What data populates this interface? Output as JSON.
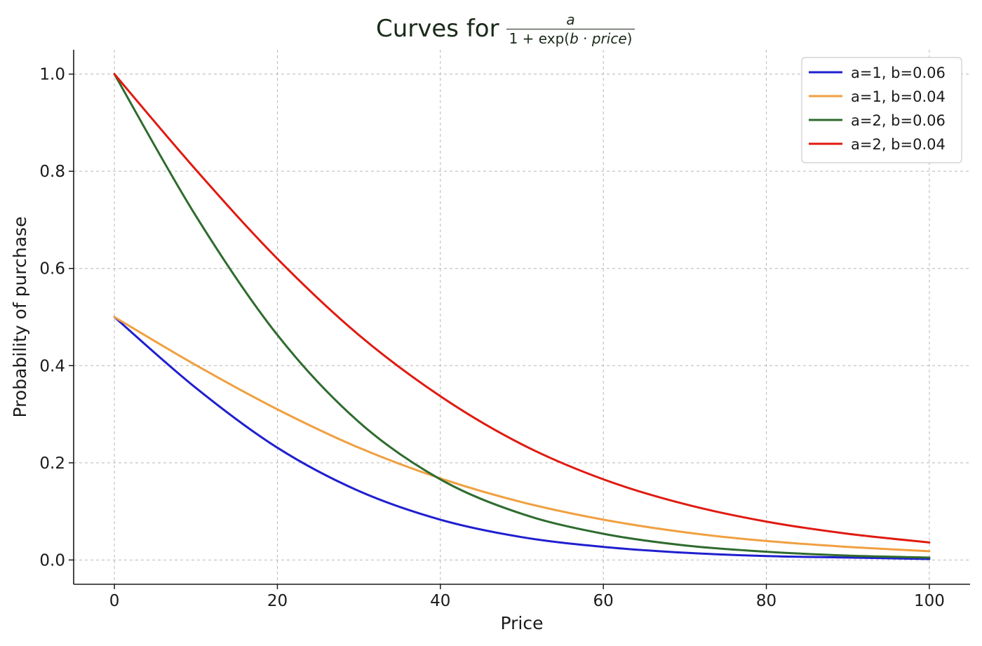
{
  "chart_data": {
    "type": "line",
    "title": "Curves for",
    "formula": {
      "numerator": "a",
      "denominator_prefix": "1 + exp(",
      "denominator_var1": "b",
      "denominator_dot": " · ",
      "denominator_var2": "price",
      "denominator_suffix": ")"
    },
    "xlabel": "Price",
    "ylabel": "Probability of purchase",
    "xlim": [
      -5,
      105
    ],
    "ylim": [
      -0.05,
      1.05
    ],
    "xticks": [
      0,
      20,
      40,
      60,
      80,
      100
    ],
    "yticks": [
      0.0,
      0.2,
      0.4,
      0.6,
      0.8,
      1.0
    ],
    "xtick_labels": [
      "0",
      "20",
      "40",
      "60",
      "80",
      "100"
    ],
    "ytick_labels": [
      "0.0",
      "0.2",
      "0.4",
      "0.6",
      "0.8",
      "1.0"
    ],
    "grid": true,
    "legend_position": "top-right",
    "x": [
      0,
      10,
      20,
      30,
      40,
      50,
      60,
      70,
      80,
      90,
      100
    ],
    "series": [
      {
        "name": "a=1, b=0.06",
        "color": "#1f1fd0",
        "values": [
          0.5,
          0.354,
          0.231,
          0.142,
          0.083,
          0.047,
          0.027,
          0.015,
          0.008,
          0.005,
          0.002
        ]
      },
      {
        "name": "a=1, b=0.04",
        "color": "#f0a040",
        "values": [
          0.5,
          0.401,
          0.31,
          0.231,
          0.168,
          0.119,
          0.083,
          0.057,
          0.039,
          0.027,
          0.018
        ]
      },
      {
        "name": "a=2, b=0.06",
        "color": "#2e6b2e",
        "values": [
          1.0,
          0.708,
          0.463,
          0.284,
          0.166,
          0.095,
          0.054,
          0.03,
          0.017,
          0.009,
          0.005
        ]
      },
      {
        "name": "a=2, b=0.04",
        "color": "#e01a10",
        "values": [
          1.0,
          0.803,
          0.62,
          0.463,
          0.337,
          0.238,
          0.166,
          0.115,
          0.079,
          0.054,
          0.036
        ]
      }
    ]
  }
}
